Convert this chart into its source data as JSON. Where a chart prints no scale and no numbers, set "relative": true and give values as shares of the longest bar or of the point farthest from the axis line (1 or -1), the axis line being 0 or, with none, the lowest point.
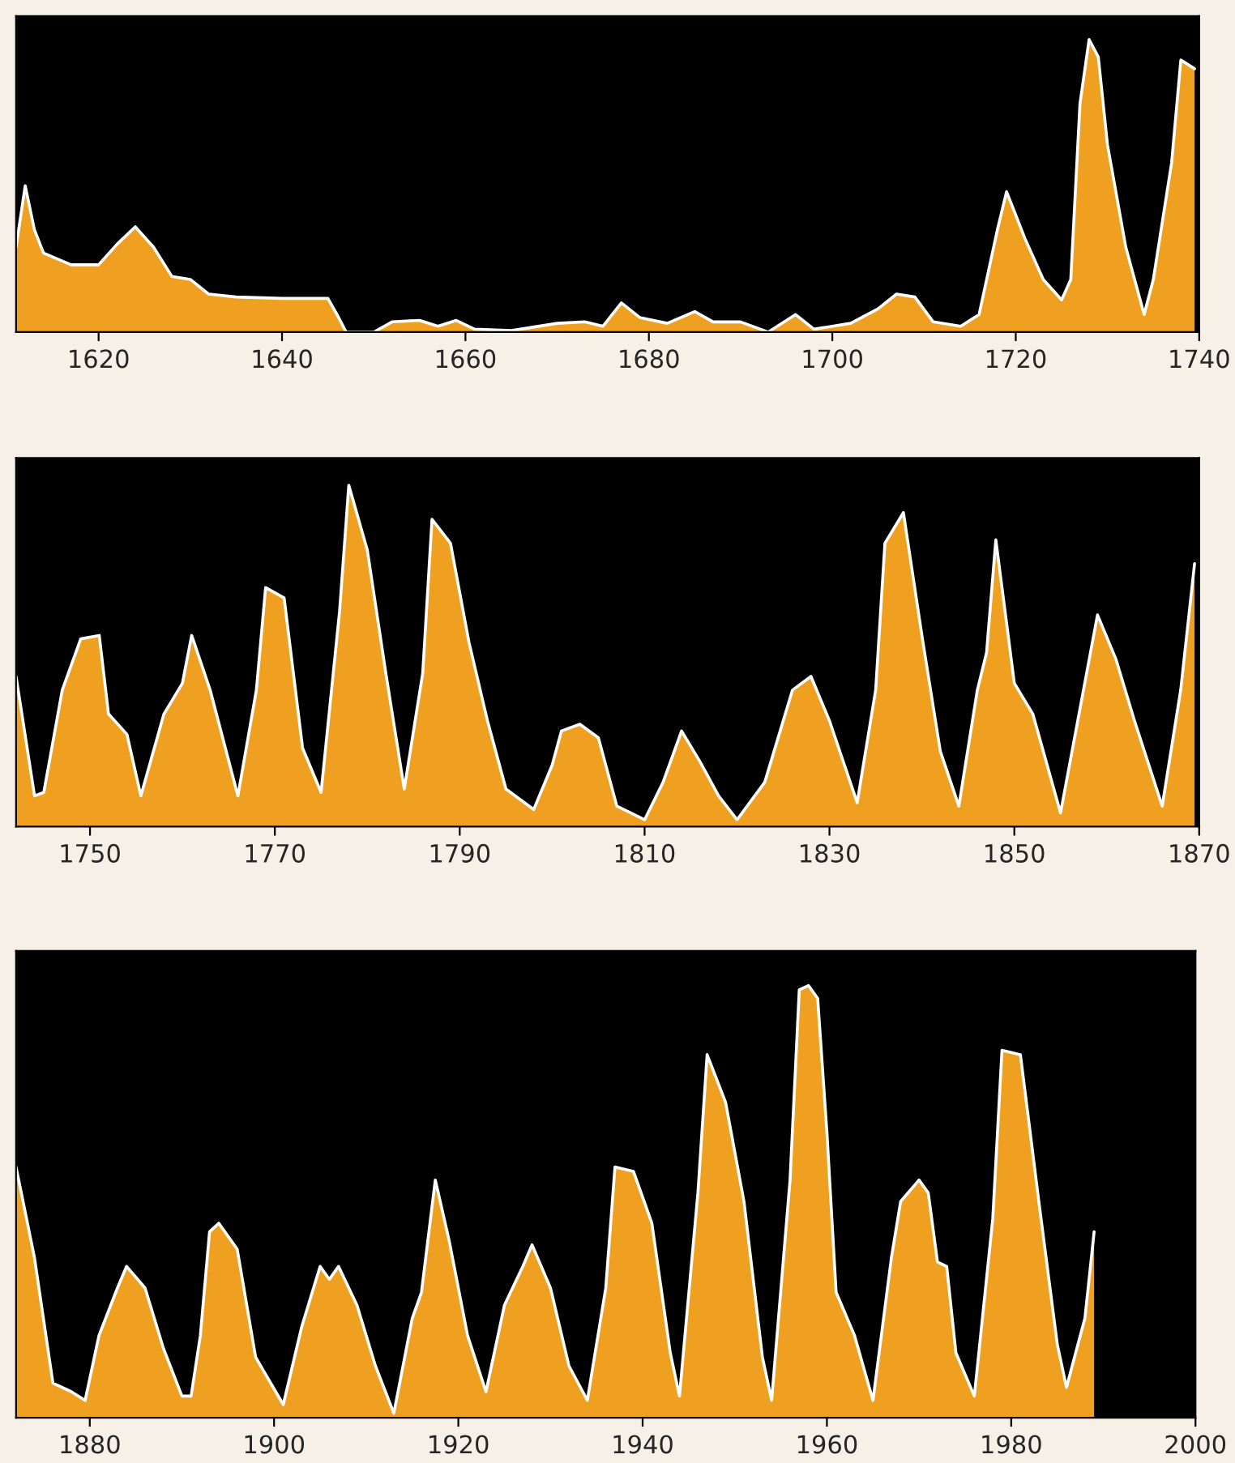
{
  "chart_data": [
    {
      "type": "area",
      "relative": true,
      "tick_labels": "x",
      "xlim": [
        1611,
        1740
      ],
      "xticks": [
        1620,
        1640,
        1660,
        1680,
        1700,
        1720,
        1740
      ],
      "x": [
        1611,
        1612,
        1613,
        1614,
        1617,
        1620,
        1622,
        1624,
        1626,
        1628,
        1630,
        1632,
        1635,
        1640,
        1645,
        1646,
        1647,
        1650,
        1652,
        1655,
        1657,
        1659,
        1661,
        1665,
        1670,
        1673,
        1675,
        1677,
        1679,
        1682,
        1685,
        1687,
        1690,
        1693,
        1696,
        1698,
        1702,
        1705,
        1707,
        1709,
        1711,
        1714,
        1716,
        1718,
        1719,
        1721,
        1723,
        1725,
        1726,
        1727,
        1728,
        1729,
        1730,
        1732,
        1734,
        1735,
        1737,
        1738,
        1739.5
      ],
      "series": [
        {
          "color": "#f0a020",
          "values": [
            0.29,
            0.5,
            0.35,
            0.27,
            0.23,
            0.23,
            0.3,
            0.36,
            0.29,
            0.19,
            0.18,
            0.13,
            0.12,
            0.115,
            0.115,
            0.06,
            0,
            0,
            0.035,
            0.04,
            0.02,
            0.04,
            0.01,
            0.005,
            0.03,
            0.035,
            0.02,
            0.1,
            0.05,
            0.03,
            0.07,
            0.035,
            0.035,
            0,
            0.06,
            0.01,
            0.03,
            0.08,
            0.13,
            0.12,
            0.035,
            0.02,
            0.06,
            0.35,
            0.48,
            0.32,
            0.18,
            0.11,
            0.18,
            0.78,
            1.0,
            0.94,
            0.64,
            0.29,
            0.06,
            0.18,
            0.58,
            0.93,
            0.9
          ]
        }
      ]
    },
    {
      "type": "area",
      "relative": true,
      "tick_labels": "x",
      "xlim": [
        1742,
        1870
      ],
      "xticks": [
        1750,
        1770,
        1790,
        1810,
        1830,
        1850,
        1870
      ],
      "x": [
        1742,
        1744,
        1745,
        1747,
        1749,
        1751,
        1752,
        1754,
        1755.5,
        1758,
        1760,
        1761,
        1763,
        1766,
        1768,
        1769,
        1771,
        1773,
        1775,
        1777,
        1778,
        1780,
        1782,
        1784,
        1786,
        1787,
        1789,
        1791,
        1793,
        1795,
        1798,
        1800,
        1801,
        1803,
        1805,
        1807,
        1810,
        1812,
        1814,
        1816,
        1818,
        1820,
        1823,
        1826,
        1828,
        1830,
        1833,
        1835,
        1836,
        1838,
        1840,
        1842,
        1844,
        1846,
        1847,
        1848,
        1850,
        1852,
        1855,
        1857,
        1859,
        1861,
        1863,
        1866,
        1868,
        1869.5
      ],
      "series": [
        {
          "color": "#f0a020",
          "values": [
            0.44,
            0.09,
            0.1,
            0.4,
            0.55,
            0.56,
            0.33,
            0.27,
            0.09,
            0.33,
            0.42,
            0.56,
            0.4,
            0.09,
            0.4,
            0.7,
            0.67,
            0.23,
            0.1,
            0.63,
            1.0,
            0.81,
            0.45,
            0.11,
            0.45,
            0.9,
            0.83,
            0.54,
            0.31,
            0.11,
            0.05,
            0.18,
            0.28,
            0.3,
            0.26,
            0.06,
            0.02,
            0.13,
            0.28,
            0.19,
            0.09,
            0.02,
            0.13,
            0.4,
            0.44,
            0.31,
            0.07,
            0.4,
            0.83,
            0.92,
            0.56,
            0.22,
            0.06,
            0.4,
            0.51,
            0.84,
            0.42,
            0.33,
            0.04,
            0.33,
            0.62,
            0.49,
            0.31,
            0.06,
            0.4,
            0.77
          ]
        }
      ]
    },
    {
      "type": "area",
      "relative": true,
      "tick_labels": "x",
      "xlim": [
        1872,
        2000
      ],
      "xticks": [
        1880,
        1900,
        1920,
        1940,
        1960,
        1980,
        2000
      ],
      "x": [
        1872,
        1874,
        1876,
        1878,
        1879.5,
        1881,
        1883,
        1884,
        1886,
        1888,
        1890,
        1891,
        1892,
        1893,
        1894,
        1896,
        1898,
        1901,
        1903,
        1905,
        1906,
        1907,
        1909,
        1911,
        1913,
        1915,
        1916,
        1917.5,
        1919,
        1921,
        1923,
        1925,
        1927,
        1928,
        1930,
        1932,
        1934,
        1936,
        1937,
        1939,
        1941,
        1943,
        1944,
        1946,
        1947,
        1949,
        1951,
        1953,
        1954,
        1956,
        1957,
        1958,
        1959,
        1960,
        1961,
        1963,
        1965,
        1967,
        1968,
        1970,
        1971,
        1972,
        1973,
        1974,
        1976,
        1978,
        1979,
        1981,
        1983,
        1985,
        1986,
        1988,
        1989
      ],
      "series": [
        {
          "color": "#f0a020",
          "values": [
            0.58,
            0.37,
            0.08,
            0.06,
            0.04,
            0.19,
            0.3,
            0.35,
            0.3,
            0.16,
            0.05,
            0.05,
            0.19,
            0.43,
            0.45,
            0.39,
            0.14,
            0.03,
            0.21,
            0.35,
            0.32,
            0.35,
            0.26,
            0.12,
            0.01,
            0.23,
            0.29,
            0.55,
            0.41,
            0.19,
            0.06,
            0.26,
            0.35,
            0.4,
            0.3,
            0.12,
            0.04,
            0.3,
            0.58,
            0.57,
            0.45,
            0.15,
            0.05,
            0.52,
            0.84,
            0.73,
            0.5,
            0.14,
            0.04,
            0.55,
            0.99,
            1.0,
            0.97,
            0.66,
            0.29,
            0.19,
            0.04,
            0.37,
            0.5,
            0.55,
            0.52,
            0.36,
            0.35,
            0.15,
            0.05,
            0.46,
            0.85,
            0.84,
            0.5,
            0.17,
            0.07,
            0.23,
            0.43
          ]
        }
      ]
    }
  ]
}
